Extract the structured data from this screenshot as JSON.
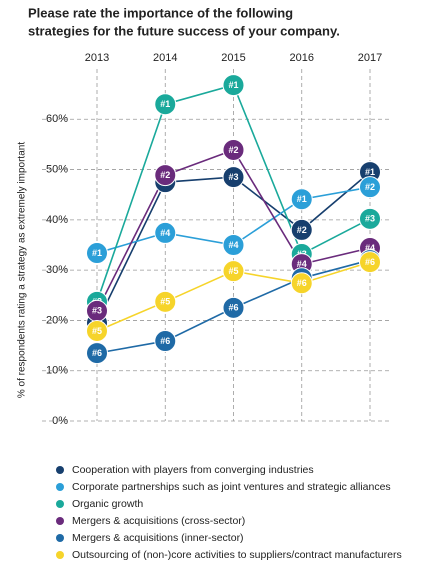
{
  "chart_data": {
    "type": "line",
    "title": [
      "Please rate the importance of the following",
      "strategies for the future success of your company."
    ],
    "ylabel": "% of respondents rating a strategy as extremely important",
    "categories": [
      "2013",
      "2014",
      "2015",
      "2016",
      "2017"
    ],
    "ylim": [
      0,
      70
    ],
    "yticks": [
      {
        "value": 0,
        "label": "0%"
      },
      {
        "value": 10,
        "label": "10%"
      },
      {
        "value": 20,
        "label": "20%"
      },
      {
        "value": 30,
        "label": "30%"
      },
      {
        "value": 40,
        "label": "40%"
      },
      {
        "value": 50,
        "label": "50%"
      },
      {
        "value": 60,
        "label": "60%"
      }
    ],
    "grid": true,
    "series": [
      {
        "name": "Cooperation with players from converging industries",
        "color": "#173f6e",
        "values": [
          19.5,
          47.5,
          48.5,
          38,
          49.5
        ],
        "value_labels": [
          "#4",
          "#3",
          "#3",
          "#2",
          "#1"
        ]
      },
      {
        "name": "Corporate partnerships such as joint ventures and strategic alliances",
        "color": "#2b9fd8",
        "values": [
          33.4,
          37.4,
          35,
          44.1,
          46.5
        ],
        "value_labels": [
          "#1",
          "#4",
          "#4",
          "#1",
          "#2"
        ]
      },
      {
        "name": "Organic growth",
        "color": "#1aa99b",
        "values": [
          23.7,
          63,
          66.8,
          33.2,
          40.2
        ],
        "value_labels": [
          "#2",
          "#1",
          "#1",
          "#3",
          "#3"
        ]
      },
      {
        "name": "Mergers & acquisitions (cross-sector)",
        "color": "#6a2b7c",
        "values": [
          21.9,
          48.9,
          53.9,
          31.2,
          34.4
        ],
        "value_labels": [
          "#3",
          "#2",
          "#2",
          "#4",
          "#4"
        ]
      },
      {
        "name": "Mergers & acquisitions (inner-sector)",
        "color": "#1f6aa6",
        "values": [
          13.5,
          15.9,
          22.5,
          28.4,
          32
        ],
        "value_labels": [
          "#6",
          "#6",
          "#6",
          "#5",
          "#5"
        ]
      },
      {
        "name": "Outsourcing of (non-)core activities to suppliers/contract manufacturers",
        "color": "#f6d42a",
        "values": [
          17.9,
          23.7,
          29.8,
          27.4,
          31.6
        ],
        "value_labels": [
          "#5",
          "#5",
          "#5",
          "#6",
          "#6"
        ]
      }
    ]
  }
}
